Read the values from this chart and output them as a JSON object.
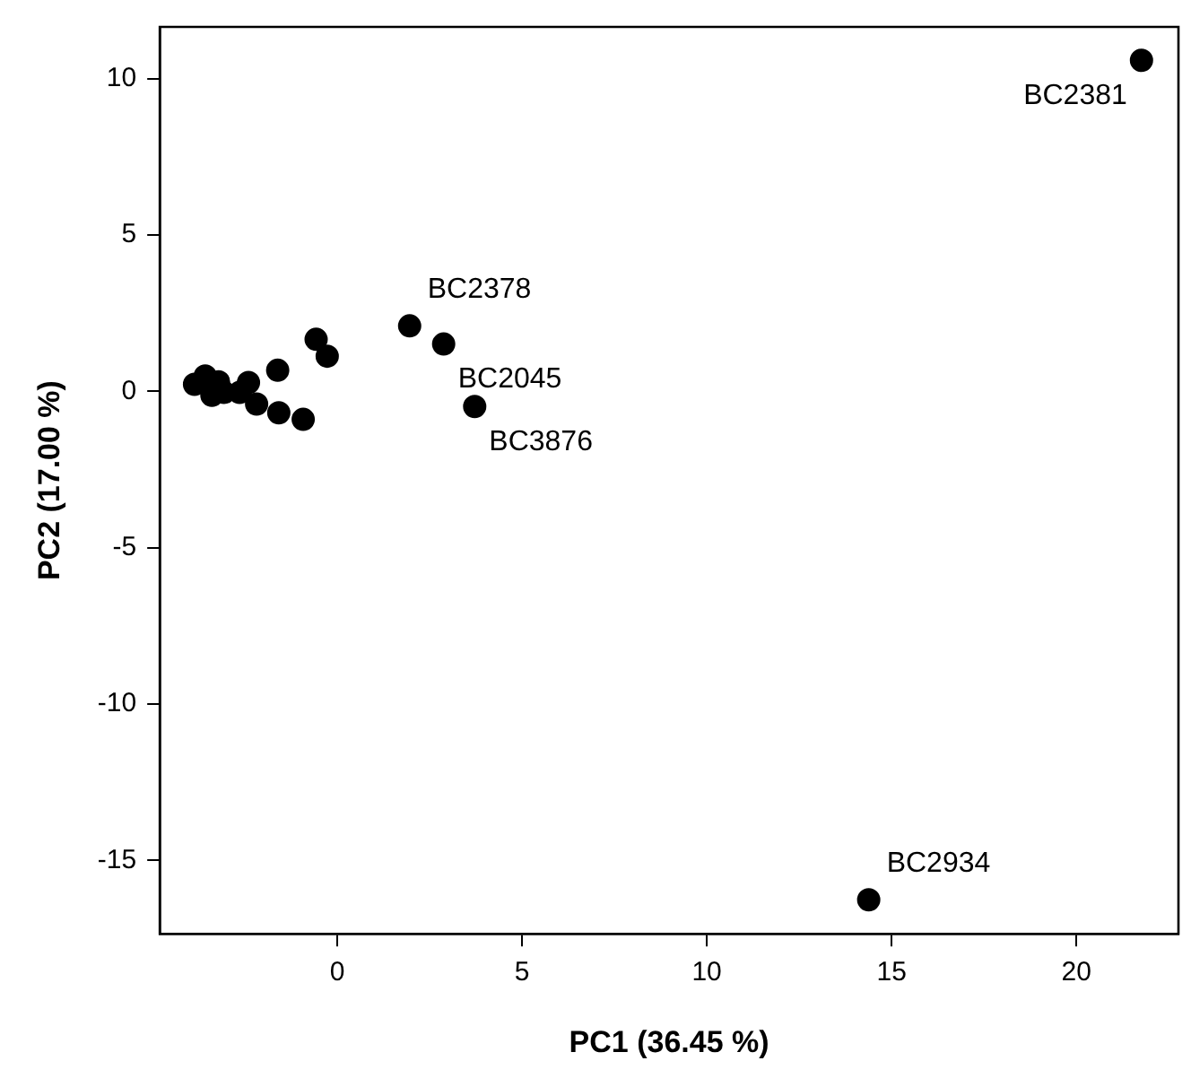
{
  "chart_data": {
    "type": "scatter",
    "xlabel": "PC1 (36.45 %)",
    "ylabel": "PC2 (17.00 %)",
    "marker": "circle",
    "xlim": [
      -4.8,
      22.76
    ],
    "ylim": [
      -17.35,
      11.65
    ],
    "xticks": [
      0,
      5,
      10,
      15,
      20
    ],
    "yticks": [
      -15,
      -10,
      -5,
      0,
      5,
      10
    ],
    "series": [
      {
        "color": "#000000",
        "x": [
          21.76,
          14.38,
          1.96,
          2.88,
          3.72,
          -0.57,
          -0.27,
          -1.61,
          -2.4,
          -3.86,
          -3.57,
          -3.21,
          -3.39,
          -3.06,
          -2.64,
          -2.18,
          -1.58,
          -0.92
        ],
        "values": [
          10.58,
          -16.26,
          2.09,
          1.51,
          -0.49,
          1.66,
          1.12,
          0.67,
          0.28,
          0.22,
          0.49,
          0.3,
          -0.13,
          -0.04,
          -0.04,
          -0.41,
          -0.69,
          -0.9
        ]
      }
    ],
    "annotations": [
      {
        "text": "BC2381",
        "x": 21.76,
        "y": 10.58
      },
      {
        "text": "BC2934",
        "x": 14.38,
        "y": -16.26
      },
      {
        "text": "BC2378",
        "x": 1.96,
        "y": 2.09
      },
      {
        "text": "BC2045",
        "x": 2.88,
        "y": 1.51
      },
      {
        "text": "BC3876",
        "x": 3.72,
        "y": -0.49
      }
    ]
  }
}
